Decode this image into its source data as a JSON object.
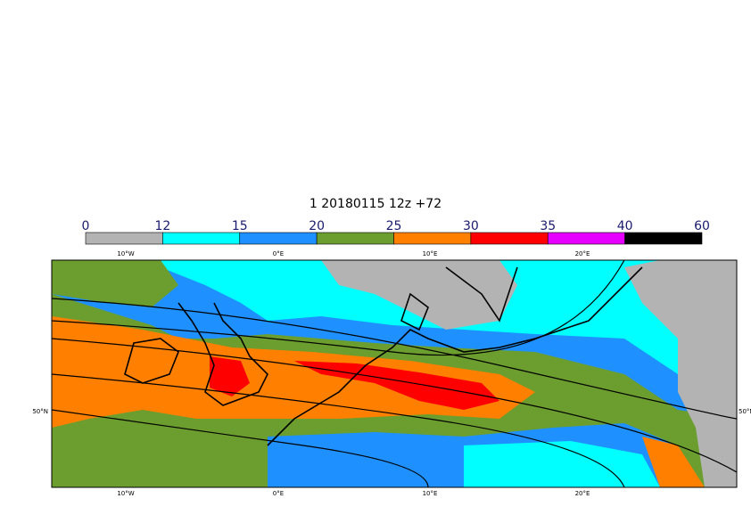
{
  "title": "1 20180115 12z +72",
  "colorbar": {
    "levels": [
      "0",
      "12",
      "15",
      "20",
      "25",
      "30",
      "35",
      "40",
      "60"
    ],
    "colors": [
      "#b3b3b3",
      "#00ffff",
      "#1e90ff",
      "#6b9e2e",
      "#ff7f00",
      "#ff0000",
      "#e600ff",
      "#000000"
    ]
  },
  "map": {
    "lon_labels": [
      "10°W",
      "0°E",
      "10°E",
      "20°E"
    ],
    "lat_labels": [
      "50°N"
    ]
  }
}
